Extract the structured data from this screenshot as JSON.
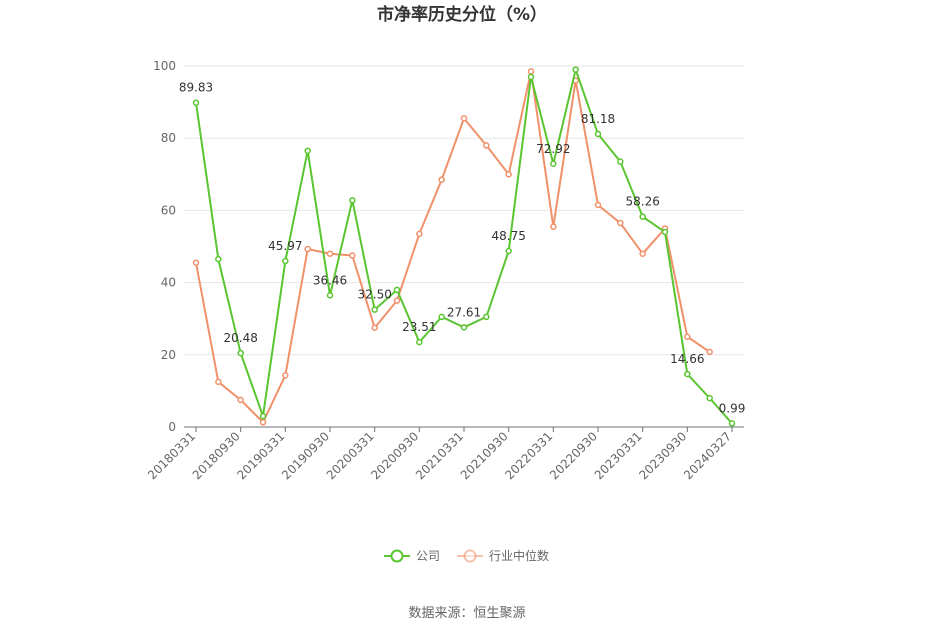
{
  "chart_data": {
    "type": "line",
    "title": "市净率历史分位（%）",
    "x": [
      "20180331",
      "20180630",
      "20180930",
      "20181231",
      "20190331",
      "20190630",
      "20190930",
      "20191231",
      "20200331",
      "20200630",
      "20200930",
      "20201231",
      "20210331",
      "20210630",
      "20210930",
      "20211231",
      "20220331",
      "20220630",
      "20220930",
      "20221231",
      "20230331",
      "20230630",
      "20230930",
      "20231231",
      "20240327"
    ],
    "x_tick_labels": [
      "20180331",
      "20180930",
      "20190331",
      "20190930",
      "20200331",
      "20200930",
      "20210331",
      "20210930",
      "20220331",
      "20220930",
      "20230331",
      "20230930",
      "20240327"
    ],
    "ylim": [
      0,
      100
    ],
    "y_ticks": [
      0,
      20,
      40,
      60,
      80,
      100
    ],
    "grid": true,
    "legend_position": "bottom",
    "series": [
      {
        "name": "公司",
        "color": "#5ac530",
        "values": [
          89.83,
          46.5,
          20.48,
          3.0,
          45.97,
          76.5,
          36.46,
          62.8,
          32.5,
          38.0,
          23.51,
          30.5,
          27.61,
          30.5,
          48.75,
          97.0,
          72.92,
          99.0,
          81.18,
          73.5,
          58.26,
          54.0,
          14.66,
          8.0,
          0.99
        ],
        "labels": {
          "0": "89.83",
          "2": "20.48",
          "4": "45.97",
          "6": "36.46",
          "8": "32.50",
          "10": "23.51",
          "12": "27.61",
          "14": "48.75",
          "16": "72.92",
          "18": "81.18",
          "20": "58.26",
          "22": "14.66",
          "24": "0.99"
        }
      },
      {
        "name": "行业中位数",
        "color": "#f0916a",
        "values": [
          45.5,
          12.5,
          7.5,
          1.3,
          14.3,
          49.3,
          48.0,
          47.5,
          27.5,
          35.0,
          53.5,
          68.5,
          85.5,
          78.0,
          70.0,
          98.5,
          55.5,
          96.0,
          61.5,
          56.5,
          48.0,
          55.0,
          25.0,
          20.8,
          null
        ]
      }
    ]
  },
  "source": "数据来源：恒生聚源"
}
